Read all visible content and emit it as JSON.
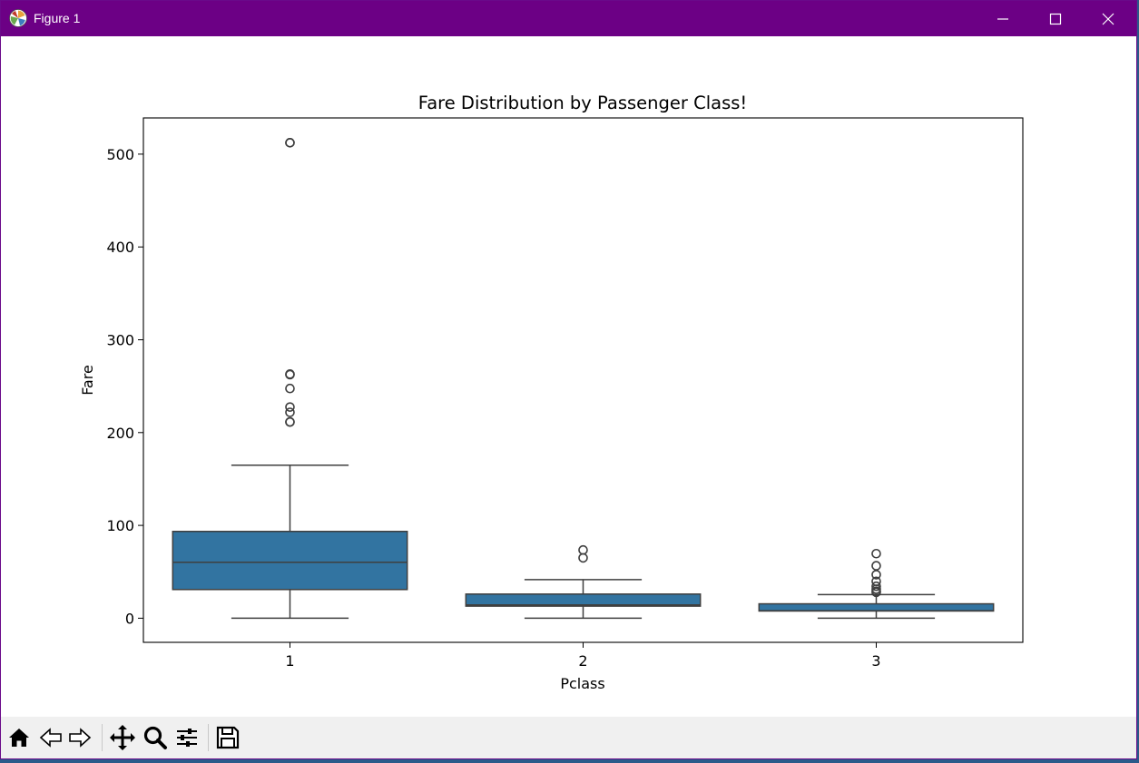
{
  "window": {
    "title": "Figure 1",
    "app_icon": "matplotlib-icon",
    "controls": [
      "minimize-icon",
      "maximize-icon",
      "close-icon"
    ]
  },
  "toolbar": {
    "buttons": [
      "home-icon",
      "back-icon",
      "forward-icon",
      "pan-icon",
      "zoom-icon",
      "configure-subplots-icon",
      "save-icon"
    ]
  },
  "chart_data": {
    "type": "box",
    "title": "Fare Distribution by Passenger Class!",
    "xlabel": "Pclass",
    "ylabel": "Fare",
    "categories": [
      "1",
      "2",
      "3"
    ],
    "ylim": [
      -26,
      539
    ],
    "yticks": [
      0,
      100,
      200,
      300,
      400,
      500
    ],
    "grid": false,
    "box_color": "#3274a1",
    "edge_color": "#3f3f3f",
    "boxes": [
      {
        "category": "1",
        "whisker_low": 0,
        "q1": 30.9,
        "median": 60.3,
        "q3": 93.5,
        "whisker_high": 164.9,
        "outliers": [
          512.3,
          512.3,
          263,
          262.4,
          247.5,
          227.5,
          221.8,
          211.5,
          211.3
        ]
      },
      {
        "category": "2",
        "whisker_low": 0,
        "q1": 13,
        "median": 14.3,
        "q3": 26,
        "whisker_high": 41.6,
        "outliers": [
          73.5,
          65
        ]
      },
      {
        "category": "3",
        "whisker_low": 0,
        "q1": 7.75,
        "median": 8.05,
        "q3": 15.5,
        "whisker_high": 25.5,
        "outliers": [
          69.55,
          56.5,
          46.9,
          39.7,
          34.4,
          31.3,
          29.1,
          27.9
        ]
      }
    ]
  }
}
